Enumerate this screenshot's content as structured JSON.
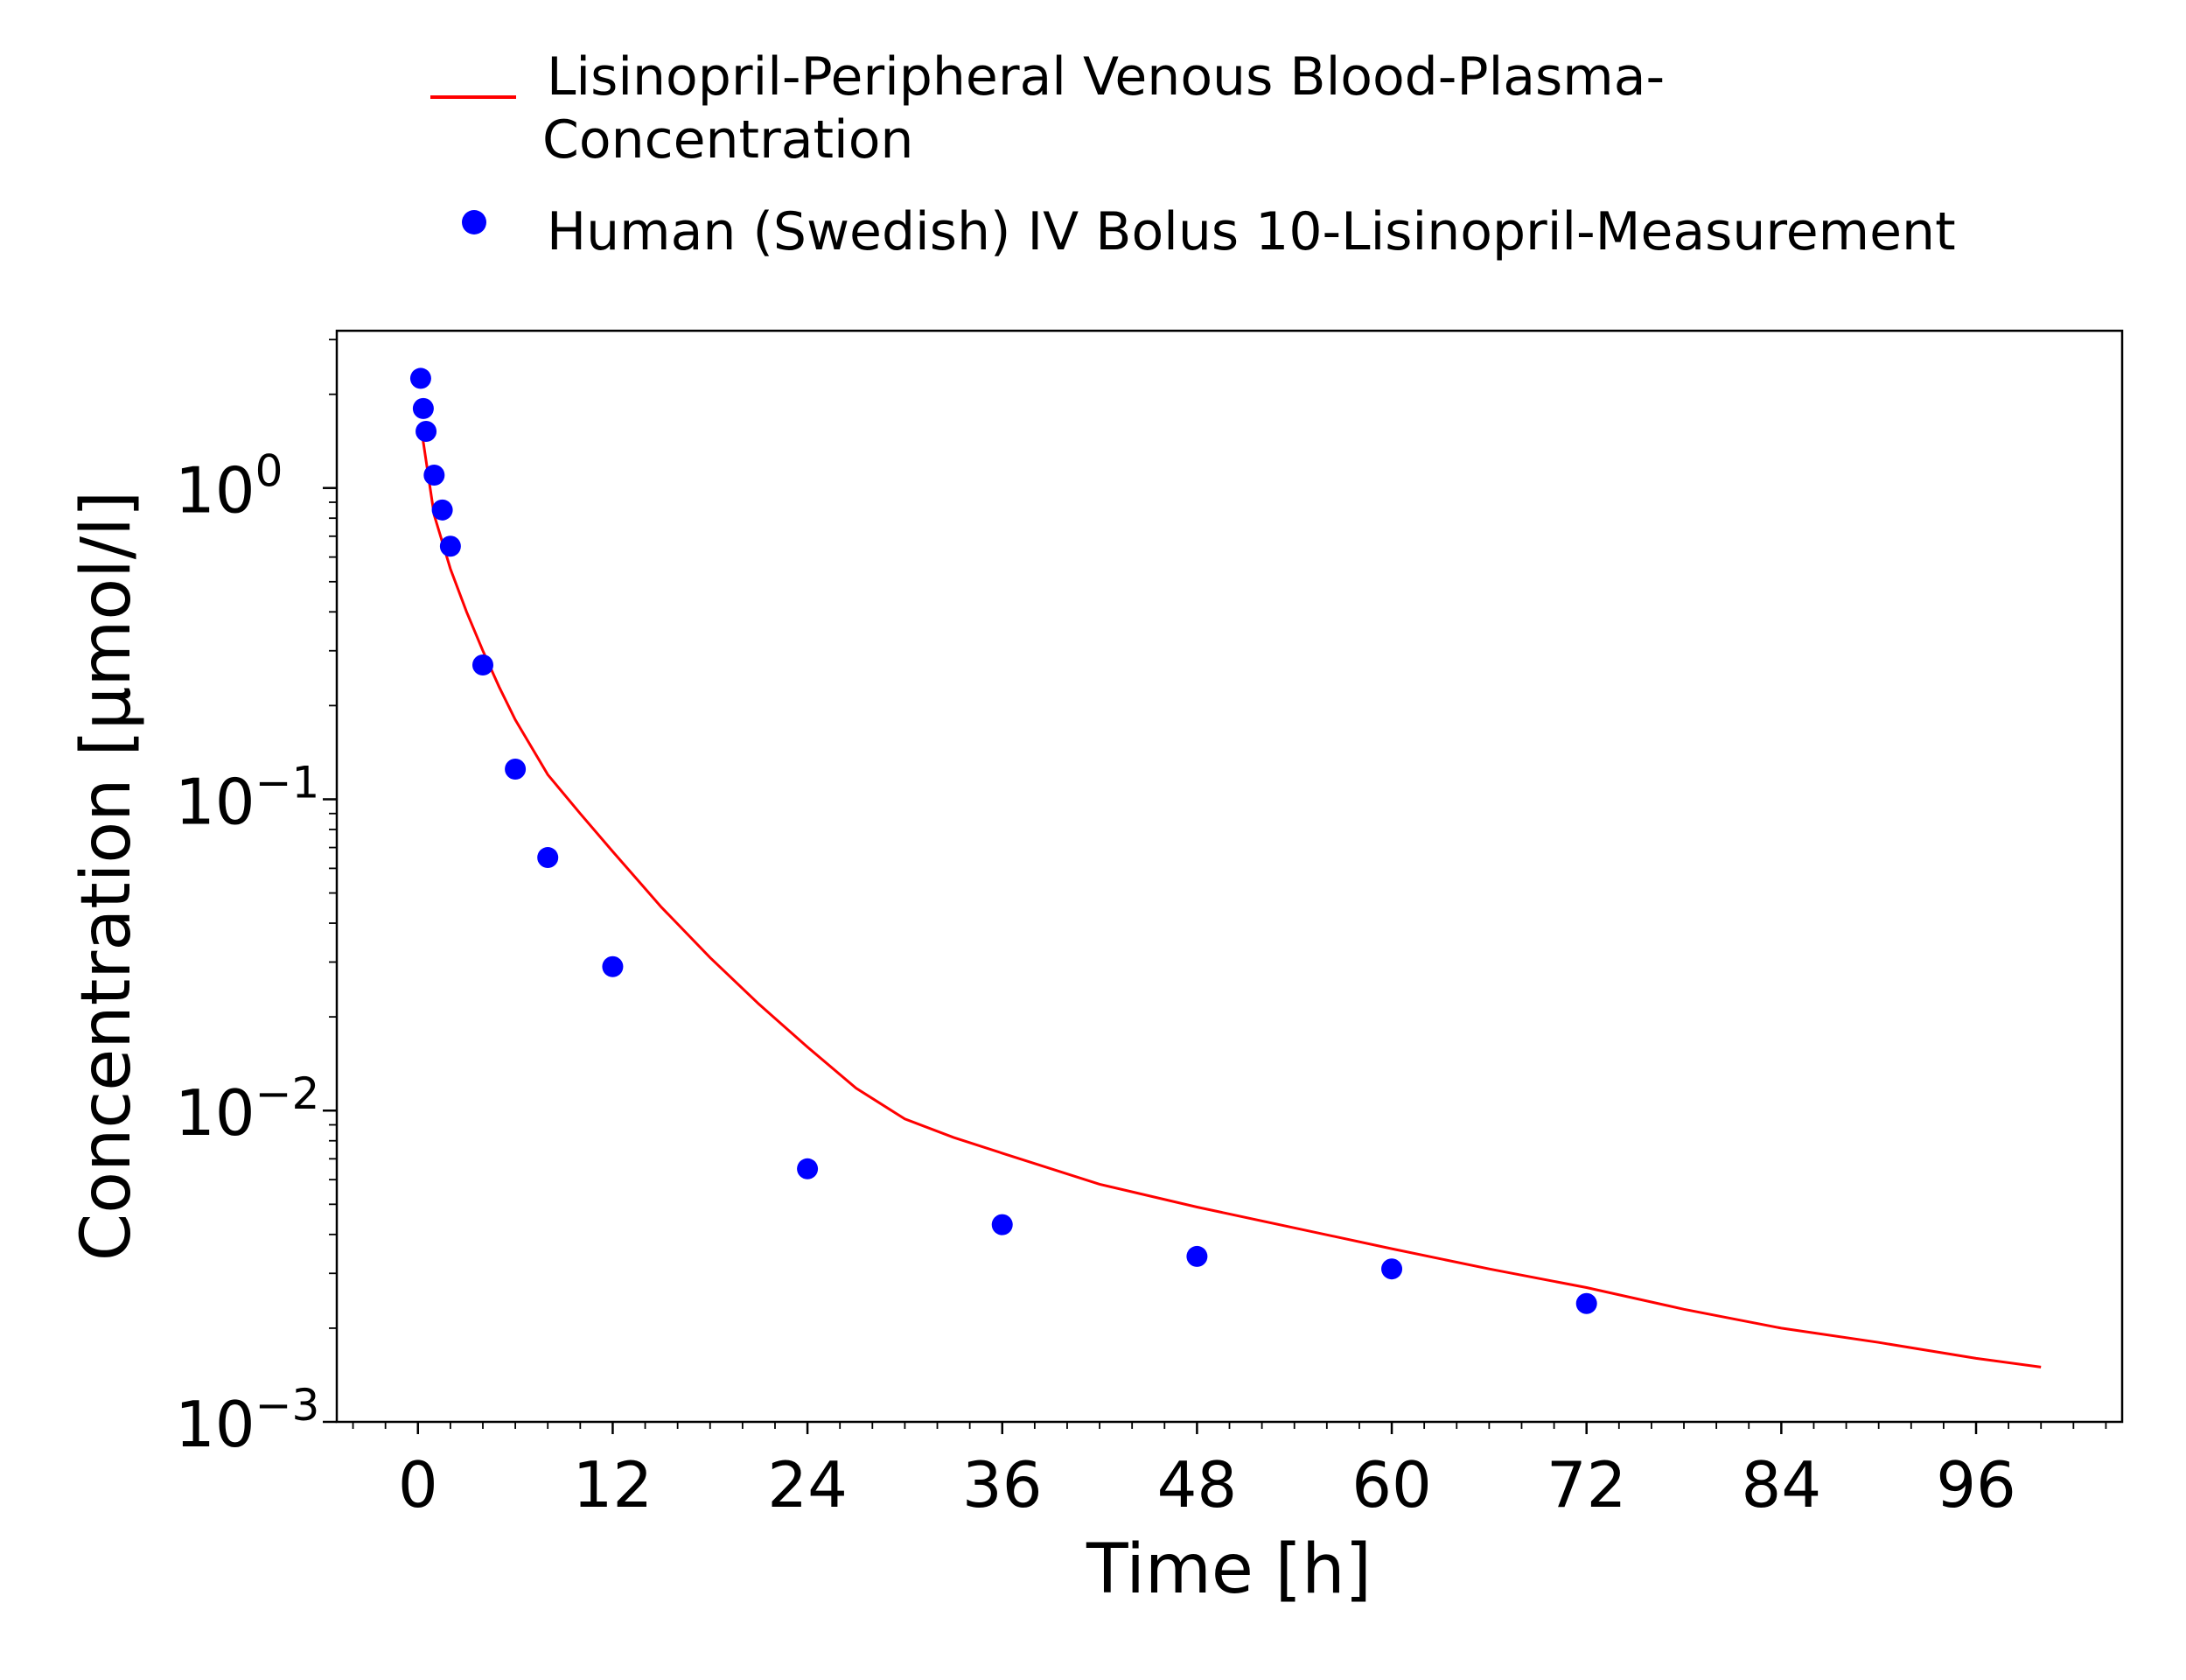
{
  "chart_data": {
    "type": "line",
    "title": "",
    "xlabel": "Time [h]",
    "ylabel": "Concentration [µmol/l]",
    "xlim": [
      -5,
      105
    ],
    "ylim": [
      0.001,
      3.2
    ],
    "yscale": "log",
    "xticks": [
      0,
      12,
      24,
      36,
      48,
      60,
      72,
      84,
      96
    ],
    "xtick_labels": [
      "0",
      "12",
      "24",
      "36",
      "48",
      "60",
      "72",
      "84",
      "96"
    ],
    "ytick_base": "10",
    "yticks": [
      {
        "value": 1,
        "exp": "0"
      },
      {
        "value": 0.1,
        "exp": "−1"
      },
      {
        "value": 0.01,
        "exp": "−2"
      },
      {
        "value": 0.001,
        "exp": "−3"
      }
    ],
    "grid": false,
    "legend": {
      "placement": "top",
      "entries": [
        {
          "name_line1": "Lisinopril-Peripheral Venous Blood-Plasma-",
          "name_line2": "Concentration",
          "marker": "line",
          "color": "#ff0000"
        },
        {
          "name_line1": "Human (Swedish) IV Bolus 10-Lisinopril-Measurement",
          "marker": "circle",
          "color": "#0000ff"
        }
      ]
    },
    "series": [
      {
        "name": "Lisinopril-Peripheral Venous Blood-Plasma-Concentration",
        "kind": "line",
        "color": "#ff0000",
        "x": [
          0.25,
          1,
          2,
          3,
          4,
          5,
          6,
          8,
          10,
          12,
          15,
          18,
          21,
          24,
          27,
          30,
          33,
          36,
          42,
          48,
          54,
          60,
          66,
          72,
          78,
          84,
          90,
          96,
          100
        ],
        "y": [
          1.5,
          0.82,
          0.55,
          0.4,
          0.3,
          0.23,
          0.18,
          0.12,
          0.09,
          0.068,
          0.045,
          0.031,
          0.022,
          0.016,
          0.0118,
          0.0094,
          0.0082,
          0.0073,
          0.0058,
          0.0049,
          0.0042,
          0.0036,
          0.0031,
          0.0027,
          0.0023,
          0.002,
          0.0018,
          0.0016,
          0.0015
        ]
      },
      {
        "name": "Human (Swedish) IV Bolus 10-Lisinopril-Measurement",
        "kind": "scatter",
        "color": "#0000ff",
        "x": [
          0.17,
          0.33,
          0.5,
          1,
          1.5,
          2,
          4,
          6,
          8,
          12,
          24,
          36,
          48,
          60,
          72
        ],
        "y": [
          2.25,
          1.8,
          1.52,
          1.1,
          0.85,
          0.65,
          0.27,
          0.125,
          0.065,
          0.029,
          0.0065,
          0.0043,
          0.0034,
          0.0031,
          0.0024
        ]
      }
    ]
  }
}
